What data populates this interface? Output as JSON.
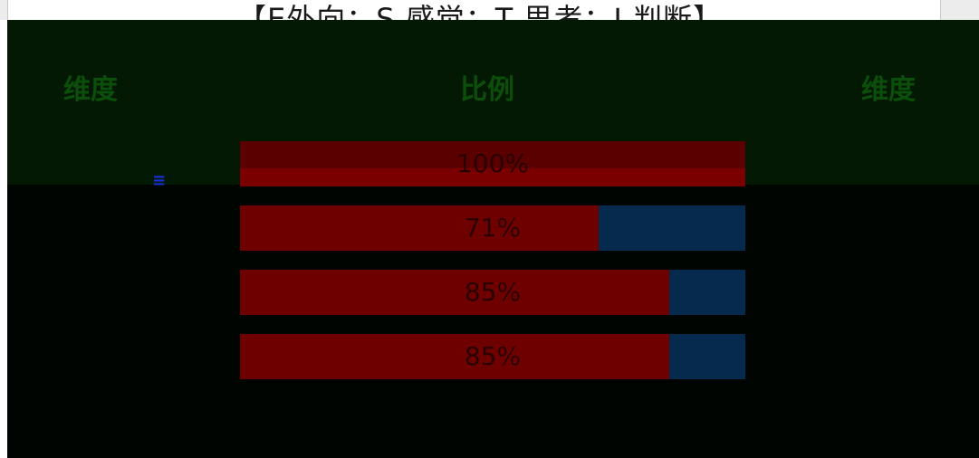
{
  "title": "【E外向：S 感觉：T 思考：J 判断】",
  "table": {
    "headers": [
      "维度",
      "比例",
      "维度"
    ],
    "marker": "≡"
  },
  "bars": [
    {
      "percent": 100,
      "label": "100%"
    },
    {
      "percent": 71,
      "label": "71%"
    },
    {
      "percent": 85,
      "label": "85%"
    },
    {
      "percent": 85,
      "label": "85%"
    }
  ],
  "colors": {
    "header_bg": "#031903",
    "header_text": "#0b4f0b",
    "bar_fill": "#6e0000",
    "bar_track": "#062a4e",
    "marker": "#1730d8"
  }
}
